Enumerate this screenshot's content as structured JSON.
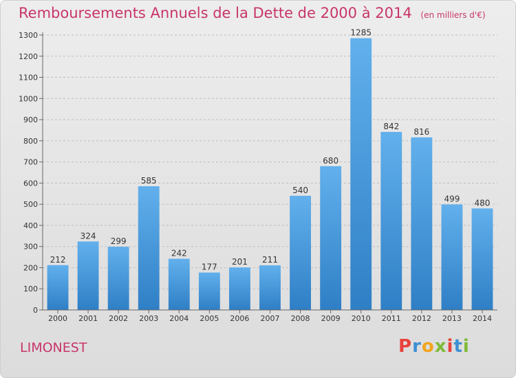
{
  "header": {
    "title": "Remboursements Annuels de la Dette de 2000 à 2014",
    "unit_note": "(en milliers d'€)"
  },
  "footer": {
    "place_name": "LIMONEST",
    "logo_letters": [
      "P",
      "r",
      "o",
      "x",
      "i",
      "t",
      "i"
    ],
    "logo_colors": [
      "#e8413c",
      "#3f8fd2",
      "#f2a51c",
      "#7dbb35",
      "#e8413c",
      "#3f8fd2",
      "#7dbb35"
    ]
  },
  "colors": {
    "bar_top": "#62b0ec",
    "bar_bottom": "#2f7fc6",
    "title": "#c8356a"
  },
  "chart_data": {
    "type": "bar",
    "title": "Remboursements Annuels de la Dette de 2000 à 2014",
    "subtitle": "(en milliers d'€)",
    "xlabel": "",
    "ylabel": "",
    "categories": [
      "2000",
      "2001",
      "2002",
      "2003",
      "2004",
      "2005",
      "2006",
      "2007",
      "2008",
      "2009",
      "2010",
      "2011",
      "2012",
      "2013",
      "2014"
    ],
    "values": [
      212,
      324,
      299,
      585,
      242,
      177,
      201,
      211,
      540,
      680,
      1285,
      842,
      816,
      499,
      480
    ],
    "ylim": [
      0,
      1300
    ],
    "yticks": [
      0,
      100,
      200,
      300,
      400,
      500,
      600,
      700,
      800,
      900,
      1000,
      1100,
      1200,
      1300
    ],
    "grid": true,
    "legend": "none"
  }
}
